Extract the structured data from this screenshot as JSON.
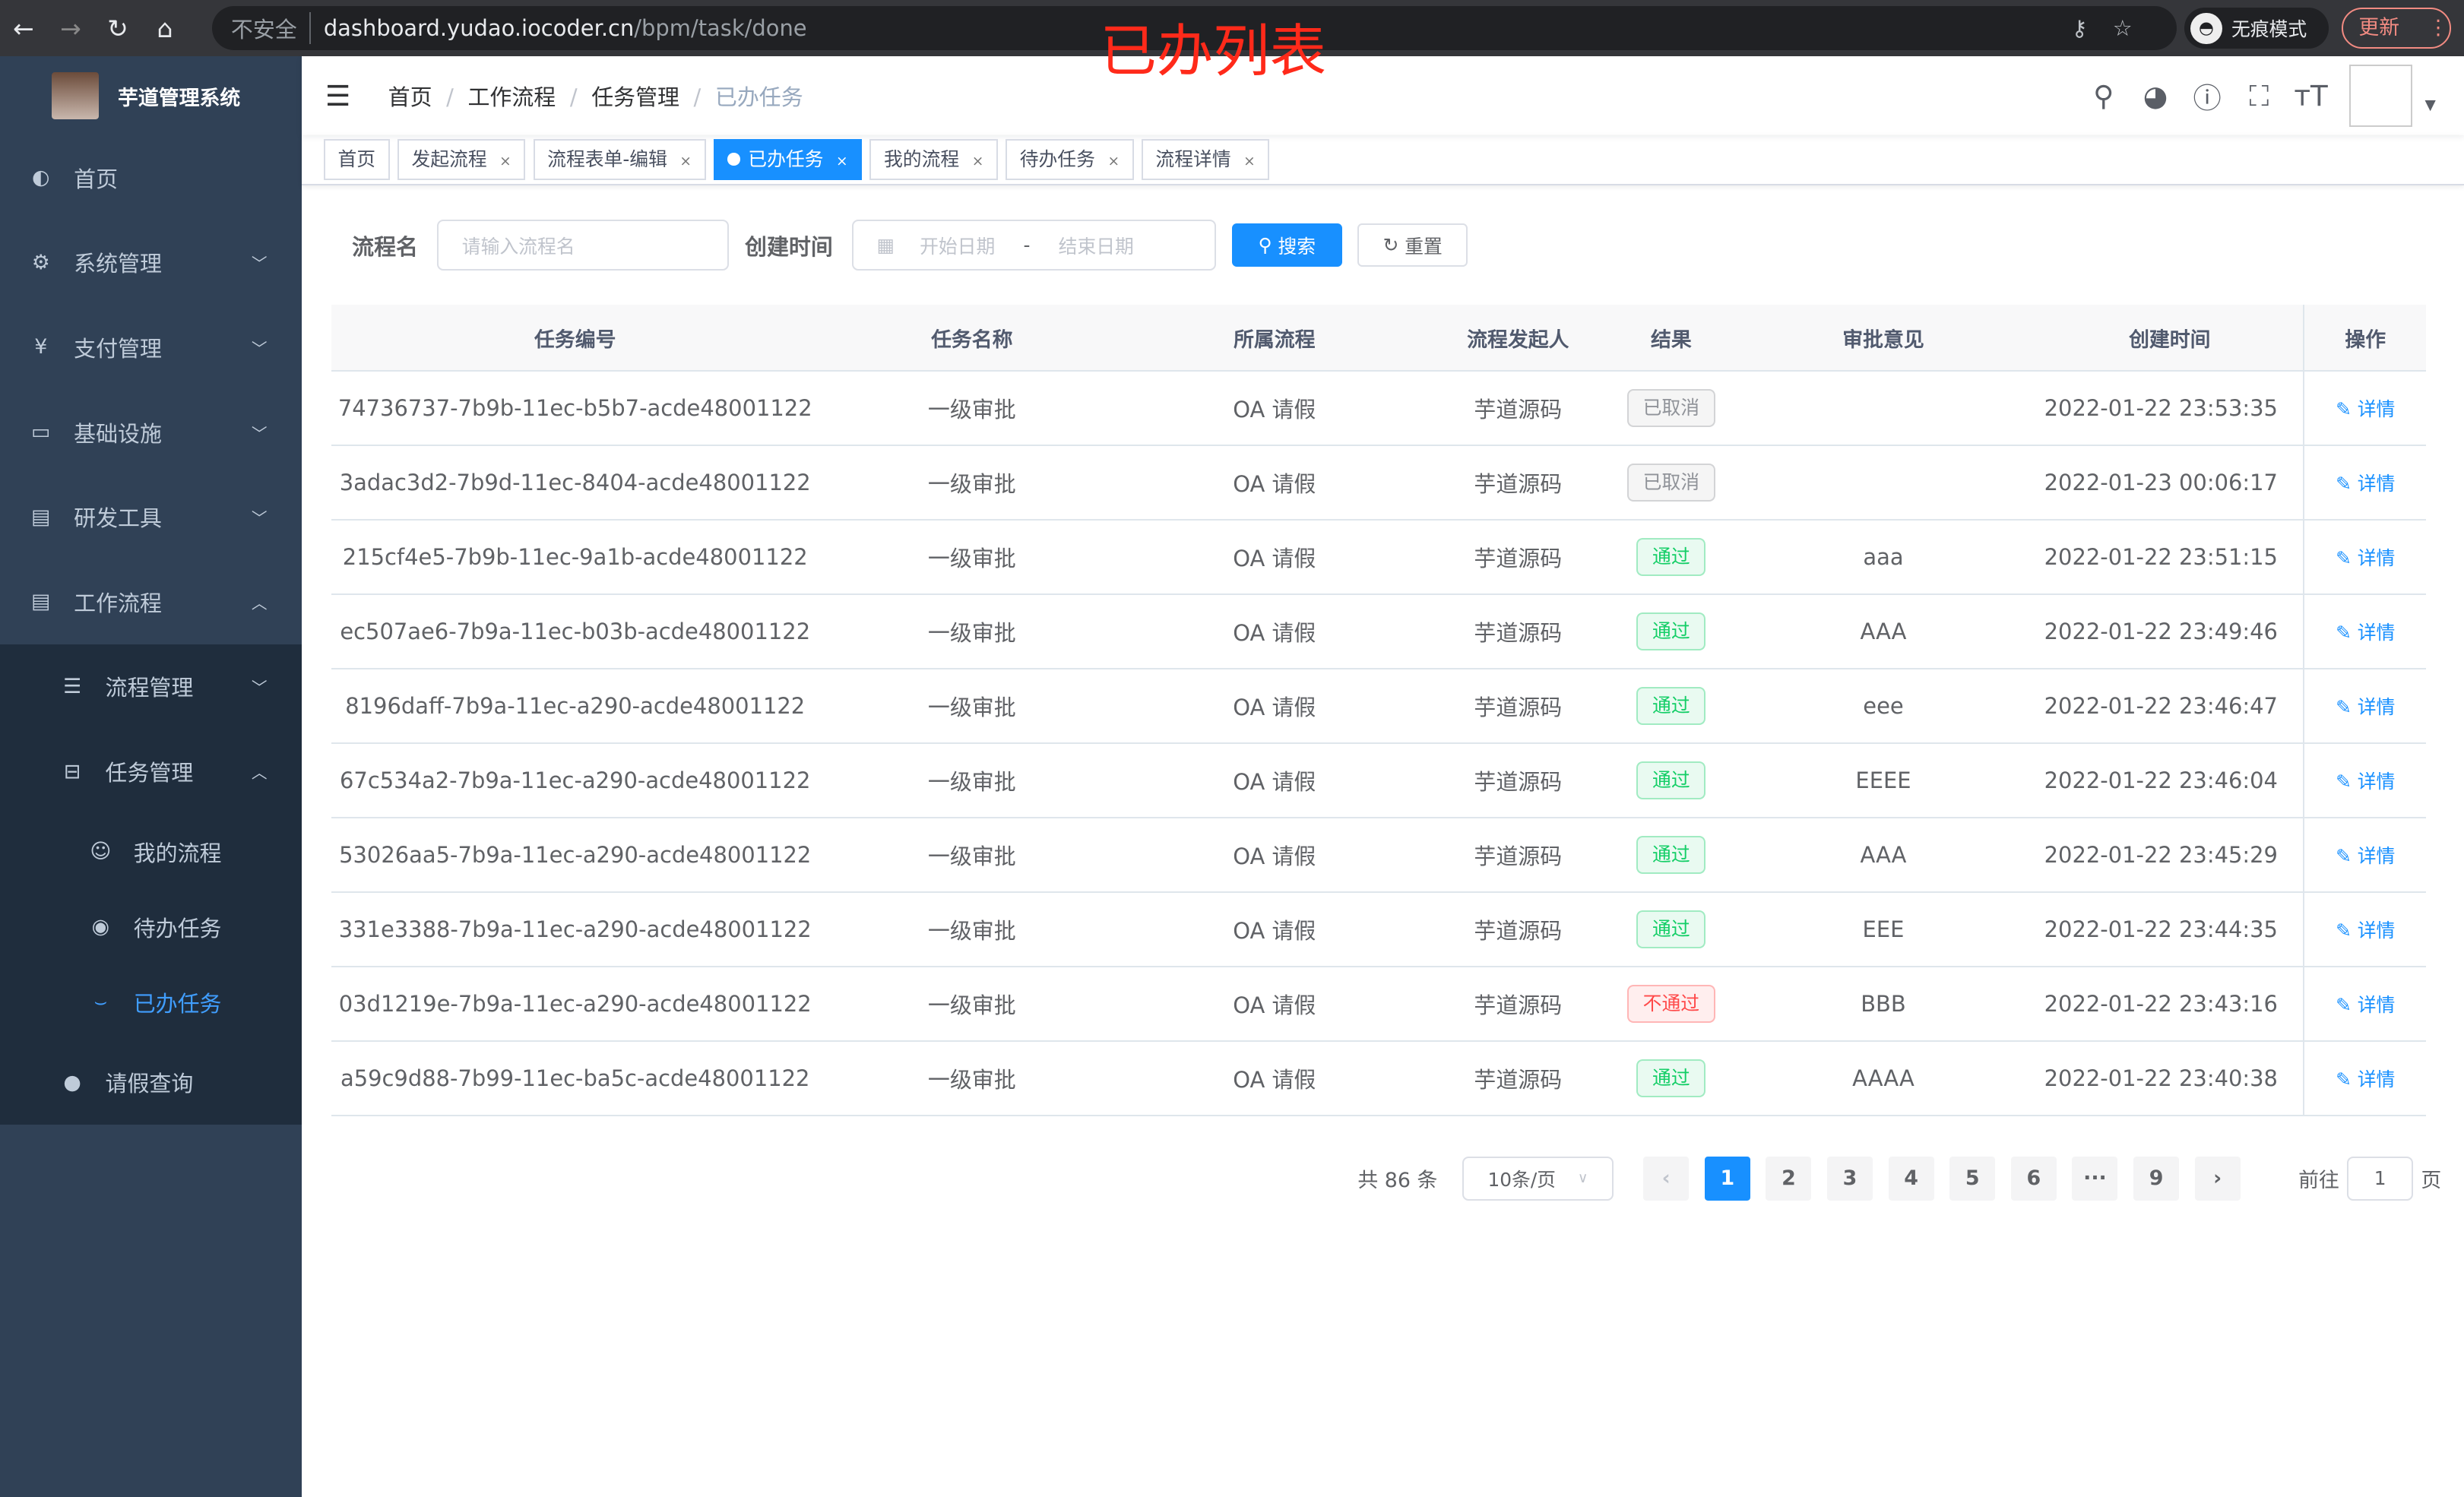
{
  "browser": {
    "insecure": "不安全",
    "host": "dashboard.yudao.iocoder.cn",
    "path": "/bpm/task/done",
    "incognito": "无痕模式",
    "update": "更新"
  },
  "overlay_title": "已办列表",
  "sidebar": {
    "title": "芋道管理系统",
    "items": [
      {
        "label": "首页",
        "icon": "dashboard-icon"
      },
      {
        "label": "系统管理",
        "icon": "gear-icon"
      },
      {
        "label": "支付管理",
        "icon": "yen-icon"
      },
      {
        "label": "基础设施",
        "icon": "monitor-icon"
      },
      {
        "label": "研发工具",
        "icon": "toolbox-icon"
      },
      {
        "label": "工作流程",
        "icon": "toolbox-icon"
      }
    ],
    "workflow": {
      "flow_mgmt": "流程管理",
      "task_mgmt": "任务管理",
      "my_process": "我的流程",
      "todo": "待办任务",
      "done": "已办任务",
      "leave": "请假查询"
    }
  },
  "breadcrumb": [
    "首页",
    "工作流程",
    "任务管理",
    "已办任务"
  ],
  "tags": [
    {
      "label": "首页"
    },
    {
      "label": "发起流程"
    },
    {
      "label": "流程表单-编辑"
    },
    {
      "label": "已办任务",
      "active": true
    },
    {
      "label": "我的流程"
    },
    {
      "label": "待办任务"
    },
    {
      "label": "流程详情"
    }
  ],
  "search": {
    "name_label": "流程名",
    "name_placeholder": "请输入流程名",
    "time_label": "创建时间",
    "start_placeholder": "开始日期",
    "end_placeholder": "结束日期",
    "search_btn": "搜索",
    "reset_btn": "重置"
  },
  "table": {
    "columns": [
      "任务编号",
      "任务名称",
      "所属流程",
      "流程发起人",
      "结果",
      "审批意见",
      "创建时间",
      "操作"
    ],
    "op_label": "详情",
    "result_colors": {
      "已取消": "#909399",
      "通过": "#13ce66",
      "不通过": "#ff4949"
    },
    "rows": [
      [
        "74736737-7b9b-11ec-b5b7-acde48001122",
        "一级审批",
        "OA 请假",
        "芋道源码",
        "已取消",
        "",
        "2022-01-22 23:53:35"
      ],
      [
        "3adac3d2-7b9d-11ec-8404-acde48001122",
        "一级审批",
        "OA 请假",
        "芋道源码",
        "已取消",
        "",
        "2022-01-23 00:06:17"
      ],
      [
        "215cf4e5-7b9b-11ec-9a1b-acde48001122",
        "一级审批",
        "OA 请假",
        "芋道源码",
        "通过",
        "aaa",
        "2022-01-22 23:51:15"
      ],
      [
        "ec507ae6-7b9a-11ec-b03b-acde48001122",
        "一级审批",
        "OA 请假",
        "芋道源码",
        "通过",
        "AAA",
        "2022-01-22 23:49:46"
      ],
      [
        "8196daff-7b9a-11ec-a290-acde48001122",
        "一级审批",
        "OA 请假",
        "芋道源码",
        "通过",
        "eee",
        "2022-01-22 23:46:47"
      ],
      [
        "67c534a2-7b9a-11ec-a290-acde48001122",
        "一级审批",
        "OA 请假",
        "芋道源码",
        "通过",
        "EEEE",
        "2022-01-22 23:46:04"
      ],
      [
        "53026aa5-7b9a-11ec-a290-acde48001122",
        "一级审批",
        "OA 请假",
        "芋道源码",
        "通过",
        "AAA",
        "2022-01-22 23:45:29"
      ],
      [
        "331e3388-7b9a-11ec-a290-acde48001122",
        "一级审批",
        "OA 请假",
        "芋道源码",
        "通过",
        "EEE",
        "2022-01-22 23:44:35"
      ],
      [
        "03d1219e-7b9a-11ec-a290-acde48001122",
        "一级审批",
        "OA 请假",
        "芋道源码",
        "不通过",
        "BBB",
        "2022-01-22 23:43:16"
      ],
      [
        "a59c9d88-7b99-11ec-ba5c-acde48001122",
        "一级审批",
        "OA 请假",
        "芋道源码",
        "通过",
        "AAAA",
        "2022-01-22 23:40:38"
      ]
    ]
  },
  "pagination": {
    "total": "共 86 条",
    "page_size": "10条/页",
    "pages": [
      "1",
      "2",
      "3",
      "4",
      "5",
      "6",
      "···",
      "9"
    ],
    "current": "1",
    "goto_label": "前往",
    "goto_value": "1",
    "page_suffix": "页"
  }
}
